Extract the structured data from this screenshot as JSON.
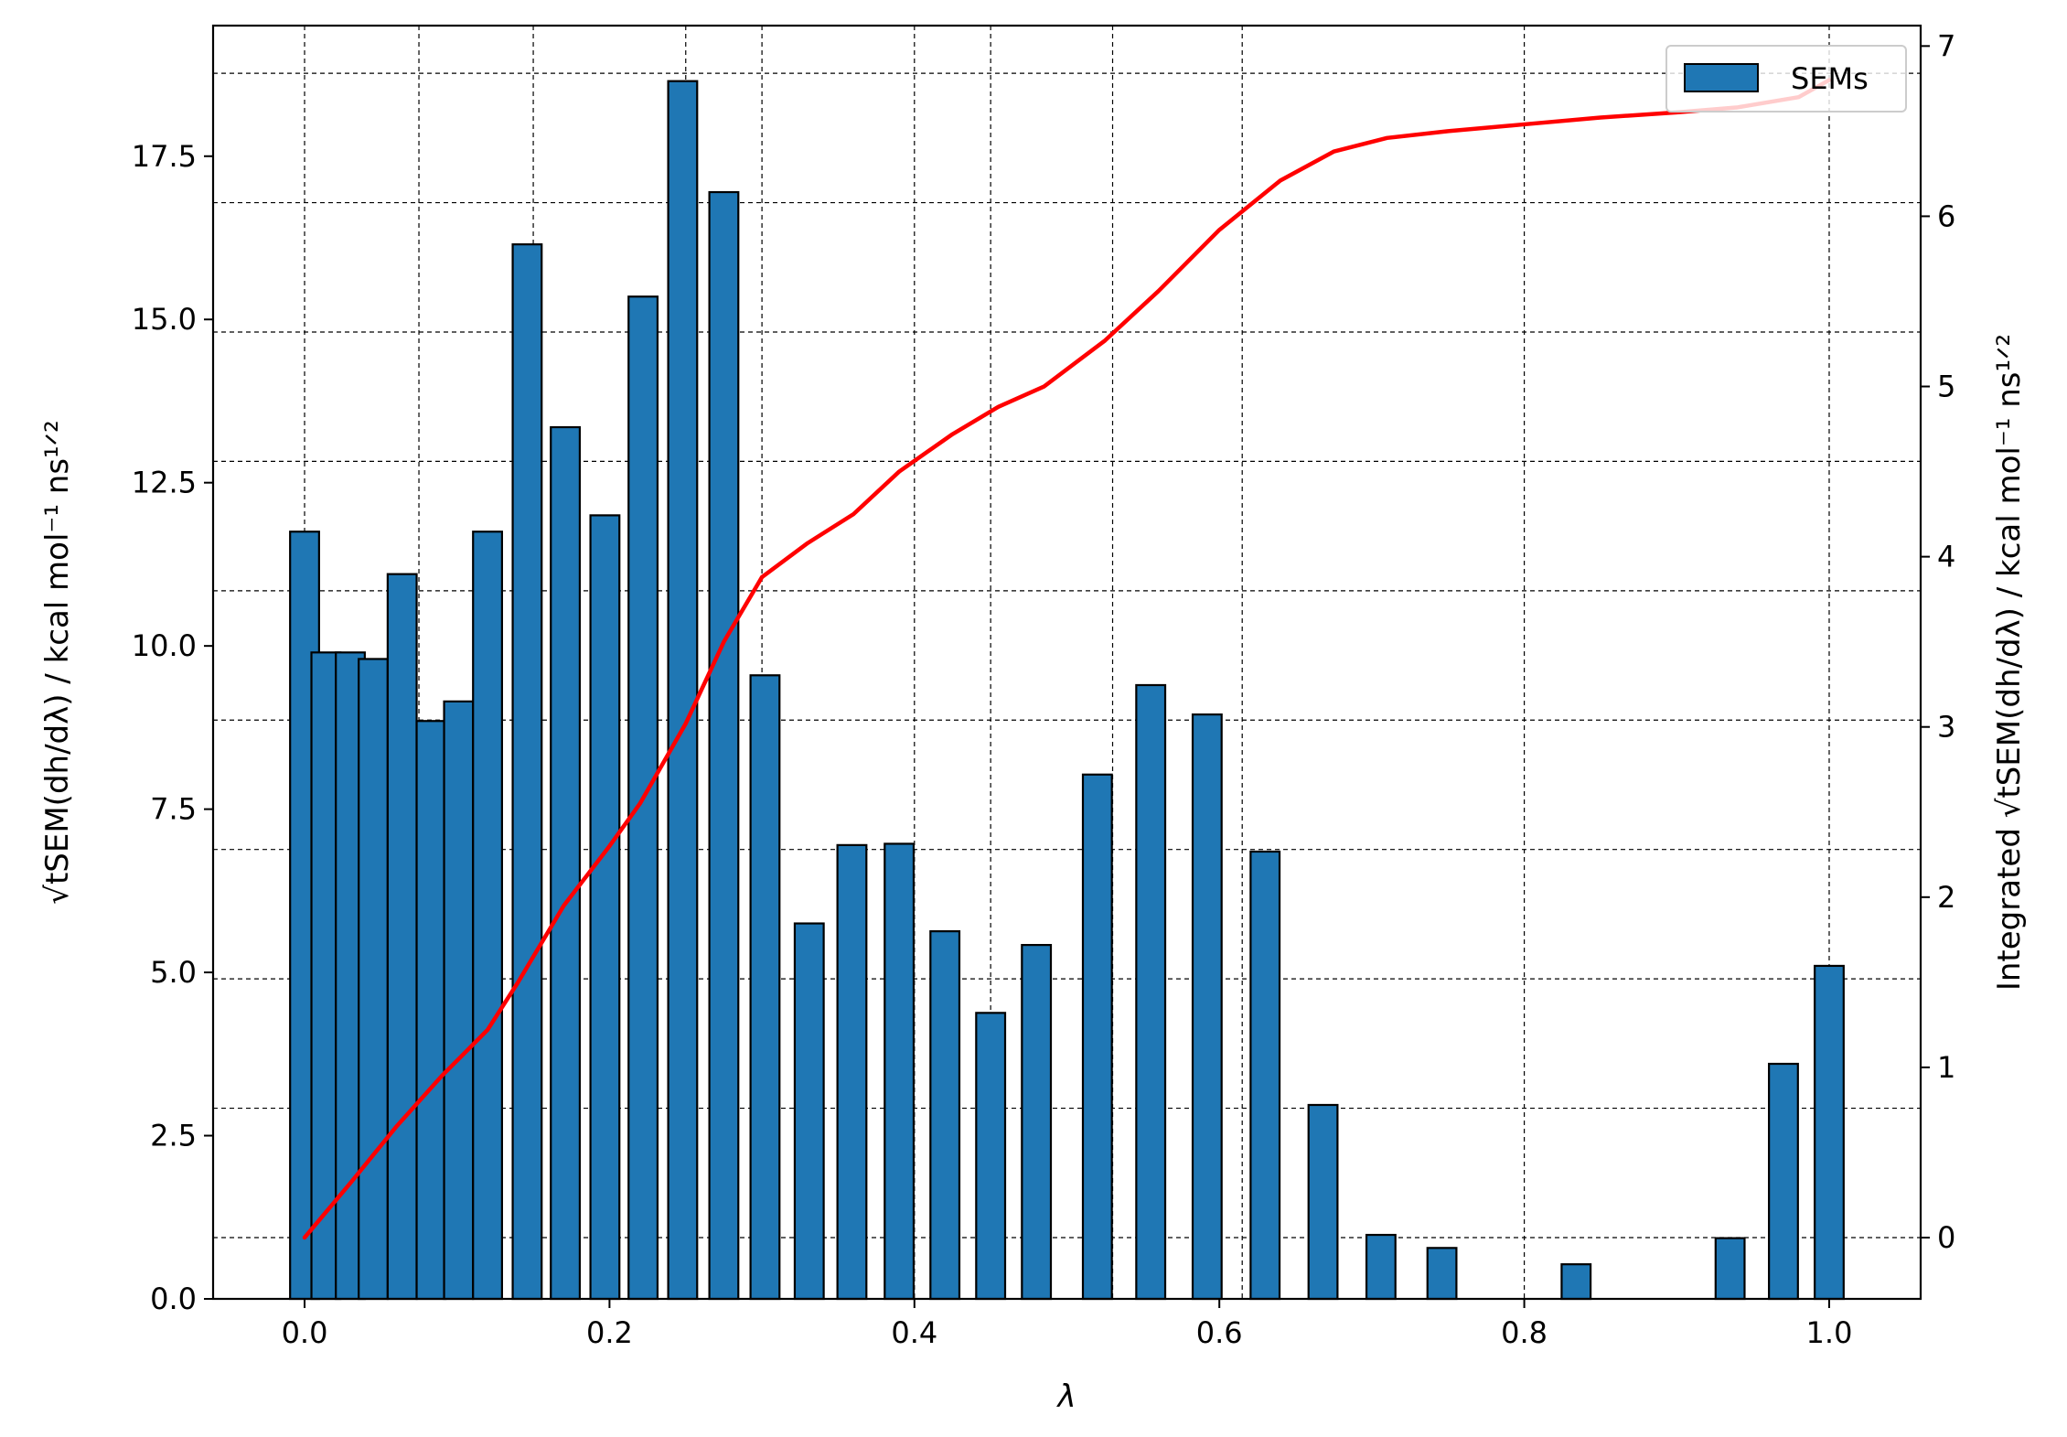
{
  "chart_data": {
    "type": "bar",
    "xlabel": "λ",
    "ylabel": "√tSEM(dh/dλ) / kcal mol⁻¹ ns¹ᐟ²",
    "ylabel2": "Integrated √tSEM(dh/dλ) / kcal mol⁻¹ ns¹ᐟ²",
    "xlim": [
      -0.06,
      1.06
    ],
    "ylim": [
      0,
      19.5
    ],
    "ylim2": [
      -0.36,
      7.12
    ],
    "xticks": [
      "0.0",
      "0.2",
      "0.4",
      "0.6",
      "0.8",
      "1.0"
    ],
    "yticks": [
      "0.0",
      "2.5",
      "5.0",
      "7.5",
      "10.0",
      "12.5",
      "15.0",
      "17.5"
    ],
    "yticks2": [
      "0",
      "1",
      "2",
      "3",
      "4",
      "5",
      "6",
      "7"
    ],
    "grid": true,
    "legend": {
      "position": "upper-right",
      "entries": [
        "SEMs"
      ]
    },
    "bar_color": "#1f77b4",
    "line_color": "#ff0000",
    "series": [
      {
        "name": "SEMs",
        "kind": "bar",
        "x": [
          0.0,
          0.014,
          0.03,
          0.045,
          0.064,
          0.083,
          0.101,
          0.12,
          0.146,
          0.171,
          0.197,
          0.222,
          0.248,
          0.275,
          0.302,
          0.331,
          0.359,
          0.39,
          0.42,
          0.45,
          0.48,
          0.52,
          0.555,
          0.592,
          0.63,
          0.668,
          0.706,
          0.746,
          0.834,
          0.935,
          0.97,
          1.0
        ],
        "values": [
          11.75,
          9.9,
          9.9,
          9.8,
          11.1,
          8.85,
          9.15,
          11.75,
          16.15,
          13.35,
          12.0,
          15.35,
          18.65,
          16.95,
          9.55,
          5.75,
          6.95,
          6.97,
          5.63,
          4.38,
          5.42,
          8.03,
          9.4,
          8.95,
          6.85,
          2.97,
          0.98,
          0.78,
          0.53,
          0.93,
          3.6,
          5.1
        ]
      },
      {
        "name": "",
        "kind": "line",
        "x": [
          0.0,
          0.03,
          0.06,
          0.09,
          0.12,
          0.14,
          0.17,
          0.2,
          0.22,
          0.25,
          0.275,
          0.3,
          0.33,
          0.36,
          0.39,
          0.425,
          0.455,
          0.485,
          0.525,
          0.56,
          0.6,
          0.64,
          0.675,
          0.71,
          0.75,
          0.8,
          0.85,
          0.9,
          0.94,
          0.98,
          1.0
        ],
        "values": [
          0.0,
          0.32,
          0.65,
          0.95,
          1.22,
          1.5,
          1.95,
          2.3,
          2.55,
          3.02,
          3.5,
          3.88,
          4.08,
          4.25,
          4.5,
          4.72,
          4.88,
          5.0,
          5.27,
          5.56,
          5.92,
          6.21,
          6.38,
          6.46,
          6.5,
          6.54,
          6.58,
          6.61,
          6.64,
          6.7,
          6.8
        ]
      }
    ]
  }
}
